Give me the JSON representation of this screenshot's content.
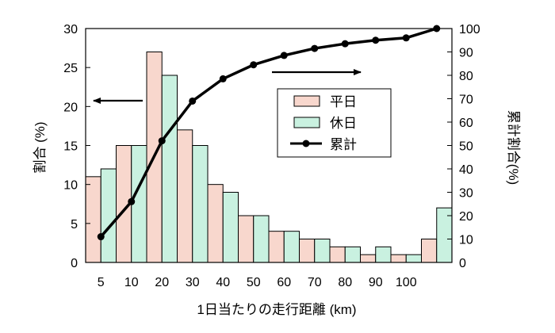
{
  "chart_data": {
    "type": "bar",
    "xlabel": "1日当たりの走行距離 (km)",
    "ylabel": "割合 (%)",
    "ylabel_right": "累計割合(%)",
    "ylim": [
      0,
      30
    ],
    "ylim_right": [
      0,
      100
    ],
    "yticks": [
      "0",
      "5",
      "10",
      "15",
      "20",
      "25",
      "30"
    ],
    "yticks_right": [
      "0",
      "10",
      "20",
      "30",
      "40",
      "50",
      "60",
      "70",
      "80",
      "90",
      "100"
    ],
    "categories": [
      "5",
      "10",
      "20",
      "30",
      "40",
      "50",
      "60",
      "70",
      "80",
      "90",
      "100",
      ""
    ],
    "grid": false,
    "legend_position": "center-right",
    "series": [
      {
        "name": "平日",
        "type": "bar",
        "axis": "left",
        "color": "#f8d7cd",
        "values": [
          11,
          15,
          27,
          17,
          10,
          6,
          4,
          3,
          2,
          1,
          1,
          3
        ]
      },
      {
        "name": "休日",
        "type": "bar",
        "axis": "left",
        "color": "#c9f1e0",
        "values": [
          12,
          15,
          24,
          15,
          9,
          6,
          4,
          3,
          2,
          2,
          1,
          7
        ]
      },
      {
        "name": "累計",
        "type": "line",
        "axis": "right",
        "color": "#000000",
        "values": [
          11,
          26,
          52,
          69,
          78.5,
          84.5,
          88.5,
          91.5,
          93.5,
          95,
          96,
          100
        ]
      }
    ],
    "annotations": [
      {
        "kind": "arrow",
        "direction": "left",
        "points_to": "left-axis"
      },
      {
        "kind": "arrow",
        "direction": "right",
        "points_to": "right-axis"
      }
    ]
  }
}
